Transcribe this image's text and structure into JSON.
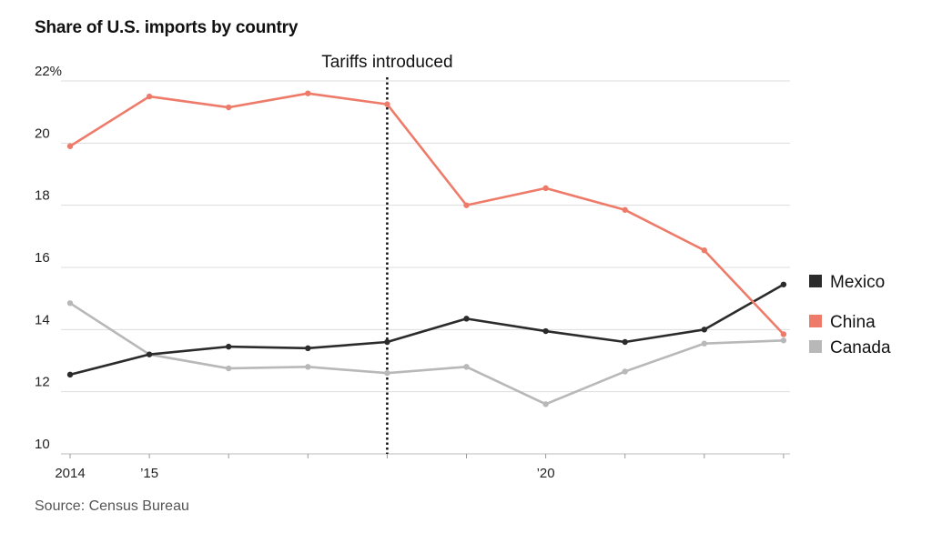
{
  "title": "Share of U.S. imports by country",
  "source": "Source: Census Bureau",
  "chart_data": {
    "type": "line",
    "title": "Share of U.S. imports by country",
    "x": [
      2014,
      2015,
      2016,
      2017,
      2018,
      2019,
      2020,
      2021,
      2022,
      2023
    ],
    "x_tick_labels": [
      {
        "x": 2014,
        "label": "2014"
      },
      {
        "x": 2015,
        "label": "’15"
      },
      {
        "x": 2020,
        "label": "’20"
      }
    ],
    "y_ticks": [
      {
        "value": 10,
        "label": "10"
      },
      {
        "value": 12,
        "label": "12"
      },
      {
        "value": 14,
        "label": "14"
      },
      {
        "value": 16,
        "label": "16"
      },
      {
        "value": 18,
        "label": "18"
      },
      {
        "value": 20,
        "label": "20"
      },
      {
        "value": 22,
        "label": "22%"
      }
    ],
    "ylim": [
      10,
      22.5
    ],
    "grid": true,
    "legend_placement": "right",
    "annotation": {
      "x": 2018,
      "label": "Tariffs introduced"
    },
    "series": [
      {
        "name": "China",
        "color": "#ee7b69",
        "values": [
          19.9,
          21.5,
          21.15,
          21.6,
          21.25,
          18.0,
          18.55,
          17.85,
          16.55,
          13.85
        ]
      },
      {
        "name": "Mexico",
        "color": "#2b2b2b",
        "values": [
          12.55,
          13.2,
          13.45,
          13.4,
          13.6,
          14.35,
          13.95,
          13.6,
          14.0,
          15.45
        ]
      },
      {
        "name": "Canada",
        "color": "#b8b8b8",
        "values": [
          14.85,
          13.2,
          12.75,
          12.8,
          12.6,
          12.8,
          11.6,
          12.65,
          13.55,
          13.65
        ]
      }
    ],
    "legend_order": [
      "Mexico",
      "China",
      "Canada"
    ]
  }
}
